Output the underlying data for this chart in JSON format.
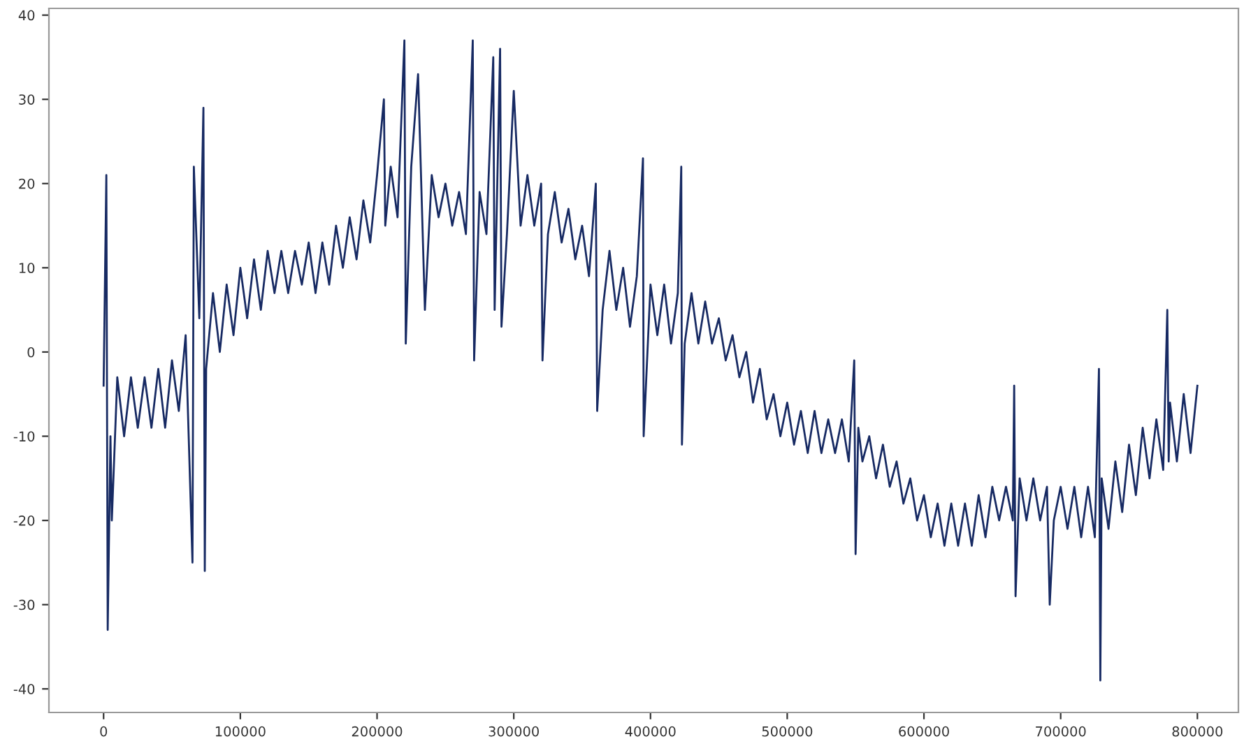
{
  "chart_data": {
    "type": "line",
    "x": [
      0,
      2000,
      3000,
      5000,
      6000,
      10000,
      15000,
      20000,
      25000,
      30000,
      35000,
      40000,
      45000,
      50000,
      55000,
      60000,
      65000,
      66000,
      70000,
      73000,
      74000,
      75000,
      80000,
      85000,
      90000,
      95000,
      100000,
      105000,
      110000,
      115000,
      120000,
      125000,
      130000,
      135000,
      140000,
      145000,
      150000,
      155000,
      160000,
      165000,
      170000,
      175000,
      180000,
      185000,
      190000,
      195000,
      200000,
      205000,
      206000,
      210000,
      215000,
      220000,
      221000,
      225000,
      230000,
      235000,
      240000,
      245000,
      250000,
      255000,
      260000,
      265000,
      270000,
      271000,
      275000,
      280000,
      285000,
      286000,
      290000,
      291000,
      295000,
      300000,
      305000,
      310000,
      315000,
      320000,
      321000,
      325000,
      330000,
      335000,
      340000,
      345000,
      350000,
      355000,
      360000,
      361000,
      365000,
      370000,
      375000,
      380000,
      385000,
      390000,
      394500,
      395000,
      400000,
      405000,
      410000,
      415000,
      420000,
      422500,
      423000,
      425000,
      430000,
      435000,
      440000,
      445000,
      450000,
      455000,
      460000,
      465000,
      470000,
      475000,
      480000,
      485000,
      490000,
      495000,
      500000,
      505000,
      510000,
      515000,
      520000,
      525000,
      530000,
      535000,
      540000,
      545000,
      549000,
      550000,
      552000,
      555000,
      560000,
      565000,
      570000,
      575000,
      580000,
      585000,
      590000,
      595000,
      600000,
      605000,
      610000,
      615000,
      620000,
      625000,
      630000,
      635000,
      640000,
      645000,
      650000,
      655000,
      660000,
      665000,
      666000,
      667000,
      670000,
      675000,
      680000,
      685000,
      690000,
      692000,
      695000,
      700000,
      705000,
      710000,
      715000,
      720000,
      725000,
      728000,
      729000,
      730000,
      735000,
      740000,
      745000,
      750000,
      755000,
      760000,
      765000,
      770000,
      775000,
      778000,
      779000,
      780000,
      785000,
      790000,
      795000,
      800000
    ],
    "series": [
      {
        "color": "#172a63",
        "values": [
          -4,
          21,
          -33,
          -10,
          -20,
          -3,
          -10,
          -3,
          -9,
          -3,
          -9,
          -2,
          -9,
          -1,
          -7,
          2,
          -25,
          22,
          4,
          29,
          -26,
          -2,
          7,
          0,
          8,
          2,
          10,
          4,
          11,
          5,
          12,
          7,
          12,
          7,
          12,
          8,
          13,
          7,
          13,
          8,
          15,
          10,
          16,
          11,
          18,
          13,
          21,
          30,
          15,
          22,
          16,
          37,
          1,
          22,
          33,
          5,
          21,
          16,
          20,
          15,
          19,
          14,
          37,
          -1,
          19,
          14,
          35,
          5,
          36,
          3,
          14,
          31,
          15,
          21,
          15,
          20,
          -1,
          14,
          19,
          13,
          17,
          11,
          15,
          9,
          20,
          -7,
          5,
          12,
          5,
          10,
          3,
          9,
          23,
          -10,
          8,
          2,
          8,
          1,
          7,
          22,
          -11,
          1,
          7,
          1,
          6,
          1,
          4,
          -1,
          2,
          -3,
          0,
          -6,
          -2,
          -8,
          -5,
          -10,
          -6,
          -11,
          -7,
          -12,
          -7,
          -12,
          -8,
          -12,
          -8,
          -13,
          -1,
          -24,
          -9,
          -13,
          -10,
          -15,
          -11,
          -16,
          -13,
          -18,
          -15,
          -20,
          -17,
          -22,
          -18,
          -23,
          -18,
          -23,
          -18,
          -23,
          -17,
          -22,
          -16,
          -20,
          -16,
          -20,
          -4,
          -29,
          -15,
          -20,
          -15,
          -20,
          -16,
          -30,
          -20,
          -16,
          -21,
          -16,
          -22,
          -16,
          -22,
          -2,
          -39,
          -15,
          -21,
          -13,
          -19,
          -11,
          -17,
          -9,
          -15,
          -8,
          -14,
          5,
          -13,
          -6,
          -13,
          -5,
          -12,
          -4
        ]
      }
    ],
    "xlim": [
      -40000,
      830000
    ],
    "xticks": [
      0,
      100000,
      200000,
      300000,
      400000,
      500000,
      600000,
      700000,
      800000
    ],
    "ylim": [
      -42.8,
      40.8
    ],
    "yticks": [
      -40,
      -30,
      -20,
      -10,
      0,
      10,
      20,
      30,
      40
    ],
    "grid": false,
    "marker": "none",
    "line_style": "solid"
  }
}
